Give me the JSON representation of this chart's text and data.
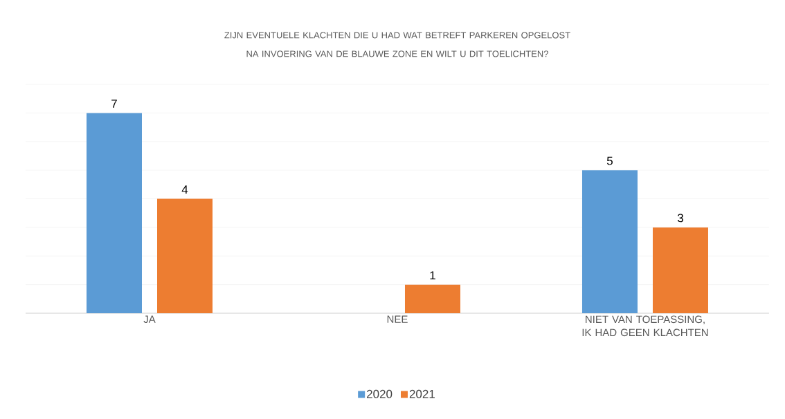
{
  "chart_data": {
    "type": "bar",
    "title": "ZIJN EVENTUELE KLACHTEN DIE U HAD WAT BETREFT PARKEREN OPGELOST NA INVOERING VAN DE BLAUWE ZONE EN WILT U DIT TOELICHTEN?",
    "categories": [
      "JA",
      "NEE",
      "NIET VAN TOEPASSING, IK HAD GEEN KLACHTEN"
    ],
    "series": [
      {
        "name": "2020",
        "color": "#5b9bd5",
        "values": [
          7,
          null,
          5
        ]
      },
      {
        "name": "2021",
        "color": "#ed7d31",
        "values": [
          4,
          1,
          3
        ]
      }
    ],
    "ylim": [
      0,
      8
    ],
    "yticks": [
      {
        "value": 0,
        "label": null
      },
      {
        "value": 1,
        "label": null
      },
      {
        "value": 2,
        "label": null
      },
      {
        "value": 3,
        "label": null
      },
      {
        "value": 4,
        "label": null
      },
      {
        "value": 5,
        "label": null
      },
      {
        "value": 6,
        "label": null
      },
      {
        "value": 7,
        "label": null
      },
      {
        "value": 8,
        "label": null
      }
    ],
    "tick_labels": "x",
    "grid": "y",
    "legend": "bottom",
    "data_labels": true
  }
}
